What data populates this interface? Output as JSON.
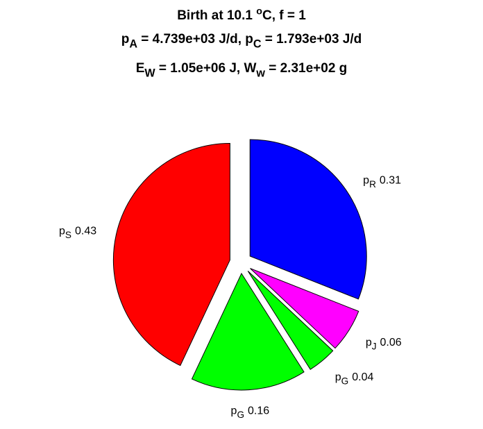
{
  "chart_data": {
    "type": "pie",
    "title": [
      [
        "Birth at 10.1 ",
        {
          "sup": "o"
        },
        "C, f = 1"
      ],
      [
        "p",
        {
          "sub": "A"
        },
        " = 4.739e+03 J/d, p",
        {
          "sub": "C"
        },
        " = 1.793e+03 J/d"
      ],
      [
        "E",
        {
          "sub": "W"
        },
        " = 1.05e+06 J, W",
        {
          "sub": "w"
        },
        " = 2.31e+02 g"
      ]
    ],
    "categories": [
      [
        "p",
        {
          "sub": "R"
        }
      ],
      [
        "p",
        {
          "sub": "J"
        }
      ],
      [
        "p",
        {
          "sub": "G"
        }
      ],
      [
        "p",
        {
          "sub": "G"
        }
      ],
      [
        "p",
        {
          "sub": "S"
        }
      ]
    ],
    "values": [
      0.31,
      0.06,
      0.04,
      0.16,
      0.43
    ],
    "colors": [
      "#0000ff",
      "#ff00ff",
      "#00ff00",
      "#00ff00",
      "#ff0000"
    ],
    "exploded": true
  }
}
